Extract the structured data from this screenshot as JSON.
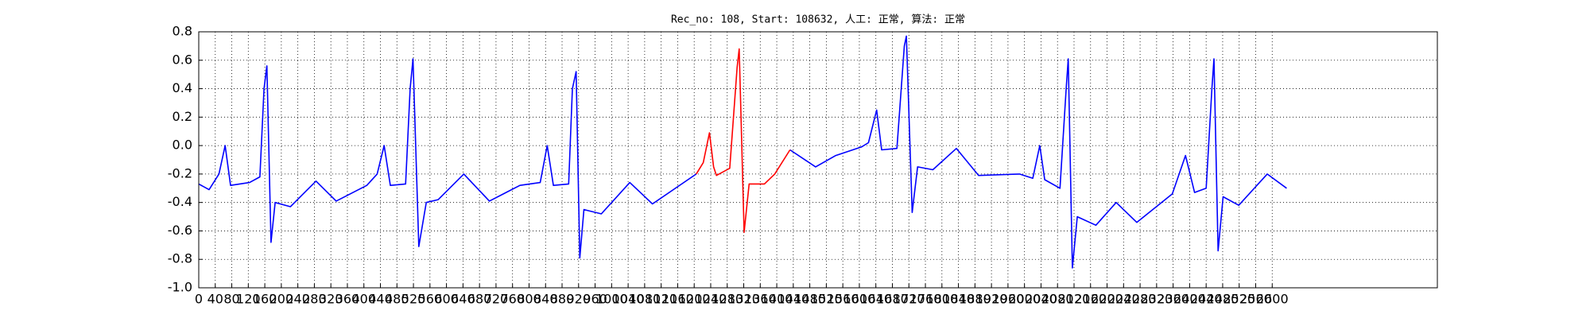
{
  "chart_data": {
    "type": "line",
    "title": "Rec_no: 108, Start: 108632, 人工: 正常, 算法: 正常",
    "xlim": [
      0,
      3000
    ],
    "ylim": [
      -1.0,
      0.8
    ],
    "xticks": [
      0,
      40,
      80,
      120,
      160,
      200,
      240,
      280,
      320,
      360,
      400,
      440,
      480,
      520,
      560,
      600,
      640,
      680,
      720,
      760,
      800,
      840,
      880,
      920,
      960,
      1000,
      1040,
      1080,
      1120,
      1160,
      1200,
      1240,
      1280,
      1320,
      1360,
      1400,
      1440,
      1480,
      1520,
      1560,
      1600,
      1640,
      1680,
      1720,
      1760,
      1800,
      1840,
      1880,
      1920,
      1960,
      2000,
      2040,
      2080,
      2120,
      2160,
      2200,
      2240,
      2280,
      2320,
      2360,
      2400,
      2440,
      2480,
      2520,
      2560,
      2600
    ],
    "yticks": [
      {
        "value": -1.0,
        "label": "-1.0"
      },
      -0.8,
      -0.6,
      -0.4,
      -0.2,
      {
        "value": 0.0,
        "label": "0.0"
      },
      0.2,
      0.4,
      0.6,
      0.8
    ],
    "grid": true,
    "series": [
      {
        "color": "#0000ff",
        "x": [
          0,
          25,
          49,
          64,
          77,
          123,
          148,
          158,
          165,
          175,
          185,
          222,
          284,
          333,
          407,
          432,
          449,
          464,
          501,
          512,
          519,
          533,
          551,
          580,
          642,
          704,
          778,
          827,
          844,
          859,
          896,
          905,
          914,
          923,
          933,
          975,
          1044,
          1099,
          1205,
          1300,
          1432,
          1494,
          1543,
          1605,
          1622,
          1642,
          1654,
          1691,
          1709,
          1714,
          1728,
          1741,
          1778,
          1835,
          1889,
          1988,
          2020,
          2037,
          2049,
          2086,
          2101,
          2106,
          2116,
          2128,
          2173,
          2222,
          2272,
          2358,
          2390,
          2412,
          2440,
          2454,
          2459,
          2469,
          2481,
          2519,
          2588,
          2635
        ],
        "values": [
          -0.27,
          -0.31,
          -0.2,
          0.0,
          -0.28,
          -0.26,
          -0.22,
          0.4,
          0.56,
          -0.68,
          -0.4,
          -0.43,
          -0.25,
          -0.39,
          -0.28,
          -0.2,
          0.0,
          -0.28,
          -0.27,
          0.4,
          0.61,
          -0.71,
          -0.4,
          -0.38,
          -0.2,
          -0.39,
          -0.28,
          -0.26,
          0.0,
          -0.28,
          -0.27,
          0.4,
          0.52,
          -0.79,
          -0.45,
          -0.48,
          -0.26,
          -0.41,
          -0.2,
          null,
          -0.03,
          -0.15,
          -0.07,
          -0.01,
          0.02,
          0.25,
          -0.03,
          -0.02,
          0.7,
          0.77,
          -0.47,
          -0.15,
          -0.17,
          -0.02,
          -0.21,
          -0.2,
          -0.23,
          0.0,
          -0.24,
          -0.3,
          0.4,
          0.61,
          -0.86,
          -0.5,
          -0.56,
          -0.4,
          -0.54,
          -0.34,
          -0.07,
          -0.33,
          -0.3,
          0.4,
          0.61,
          -0.74,
          -0.36,
          -0.42,
          -0.2,
          -0.3
        ]
      },
      {
        "color": "#ff0000",
        "x": [
          1205,
          1222,
          1237,
          1247,
          1254,
          1286,
          1304,
          1309,
          1321,
          1333,
          1370,
          1395,
          1432
        ],
        "values": [
          -0.2,
          -0.12,
          0.09,
          -0.15,
          -0.21,
          -0.16,
          0.55,
          0.68,
          -0.61,
          -0.27,
          -0.27,
          -0.2,
          -0.03
        ]
      }
    ]
  }
}
